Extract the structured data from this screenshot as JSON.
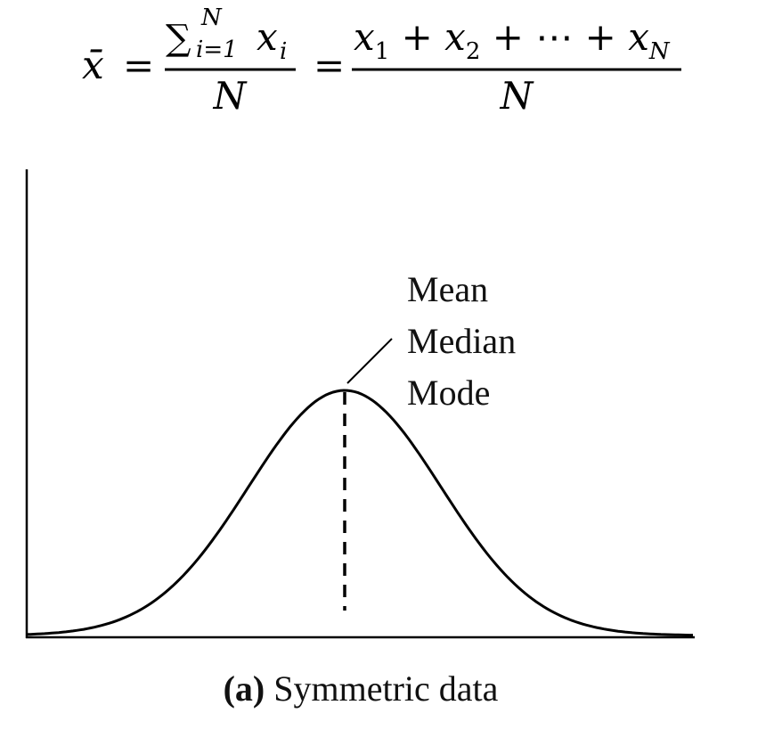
{
  "formula": {
    "lhs": "x̄",
    "equals": "=",
    "sum": "∑",
    "sum_lower": "i=1",
    "sum_upper": "N",
    "sum_term": "x",
    "sum_term_sub": "i",
    "denominator": "N",
    "operator": "+",
    "terms": [
      {
        "base": "x",
        "sub": "1"
      },
      {
        "base": "x",
        "sub": "2"
      },
      {
        "base": "⋯"
      },
      {
        "base": "x",
        "sub": "N"
      }
    ]
  },
  "labels": [
    "Mean",
    "Median",
    "Mode"
  ],
  "caption": {
    "label": "(a)",
    "text": "Symmetric data"
  }
}
